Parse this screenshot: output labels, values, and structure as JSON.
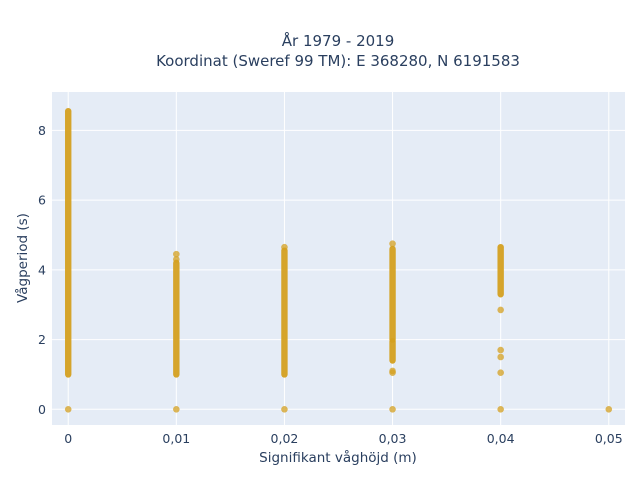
{
  "chart_data": {
    "type": "scatter",
    "title": [
      "År 1979 - 2019",
      "Koordinat (Sweref 99 TM): E 368280, N 6191583"
    ],
    "xlabel": "Signifikant våghöjd (m)",
    "ylabel": "Vågperiod (s)",
    "xlim": [
      -0.0015,
      0.0515
    ],
    "ylim": [
      -0.45,
      9.1
    ],
    "x_ticks": [
      {
        "value": 0,
        "label": "0"
      },
      {
        "value": 0.01,
        "label": "0,01"
      },
      {
        "value": 0.02,
        "label": "0,02"
      },
      {
        "value": 0.03,
        "label": "0,03"
      },
      {
        "value": 0.04,
        "label": "0,04"
      },
      {
        "value": 0.05,
        "label": "0,05"
      }
    ],
    "y_ticks": [
      {
        "value": 0,
        "label": "0"
      },
      {
        "value": 2,
        "label": "2"
      },
      {
        "value": 4,
        "label": "4"
      },
      {
        "value": 6,
        "label": "6"
      },
      {
        "value": 8,
        "label": "8"
      }
    ],
    "grid": true,
    "marker_color": "#D4A020",
    "plot_bg": "#E5ECF6",
    "series": [
      {
        "segments": [
          {
            "x": 0,
            "y_from": 1.0,
            "y_to": 8.55
          },
          {
            "x": 0.01,
            "y_from": 1.0,
            "y_to": 4.2
          },
          {
            "x": 0.02,
            "y_from": 1.0,
            "y_to": 4.55
          },
          {
            "x": 0.03,
            "y_from": 2.0,
            "y_to": 4.6
          },
          {
            "x": 0.03,
            "y_from": 1.4,
            "y_to": 1.95
          },
          {
            "x": 0.04,
            "y_from": 3.3,
            "y_to": 4.65
          }
        ],
        "points": [
          {
            "x": 0,
            "y": 0
          },
          {
            "x": 0.01,
            "y": 0
          },
          {
            "x": 0.01,
            "y": 4.3
          },
          {
            "x": 0.01,
            "y": 4.45
          },
          {
            "x": 0.02,
            "y": 0
          },
          {
            "x": 0.02,
            "y": 4.65
          },
          {
            "x": 0.03,
            "y": 0
          },
          {
            "x": 0.03,
            "y": 1.05
          },
          {
            "x": 0.03,
            "y": 1.1
          },
          {
            "x": 0.03,
            "y": 4.75
          },
          {
            "x": 0.04,
            "y": 0
          },
          {
            "x": 0.04,
            "y": 1.05
          },
          {
            "x": 0.04,
            "y": 1.5
          },
          {
            "x": 0.04,
            "y": 1.7
          },
          {
            "x": 0.04,
            "y": 2.85
          },
          {
            "x": 0.05,
            "y": 0
          }
        ]
      }
    ]
  }
}
